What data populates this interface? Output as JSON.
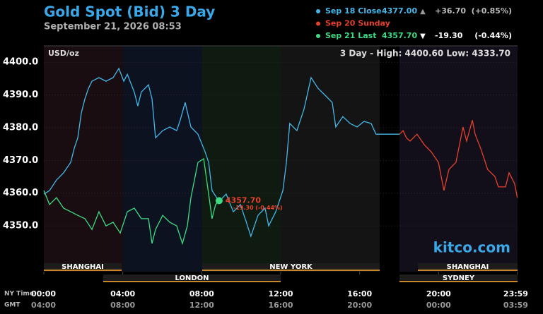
{
  "chart_data": {
    "type": "line",
    "title": "Gold Spot (Bid) 3 Day",
    "subtitle": "September 21, 2026 08:53",
    "unit_label": "USD/oz",
    "range_text": "3 Day - High: 4400.60  Low: 4333.70",
    "watermark": "kitco.com",
    "last_label": "4357.70",
    "last_change": "-19.30 (-0.44%)",
    "x_row_labels": [
      "NY Time",
      "GMT"
    ],
    "xlim": [
      0,
      24
    ],
    "xticks": [
      {
        "value": 0,
        "label": "00:00"
      },
      {
        "value": 4,
        "label": "04:00"
      },
      {
        "value": 8,
        "label": "08:00"
      },
      {
        "value": 12,
        "label": "12:00"
      },
      {
        "value": 16,
        "label": "16:00"
      },
      {
        "value": 20,
        "label": "20:00"
      },
      {
        "value": 23.98,
        "label": "23:59"
      }
    ],
    "xticks_gmt": [
      {
        "value": 0,
        "label": "04:00"
      },
      {
        "value": 4,
        "label": "08:00"
      },
      {
        "value": 8,
        "label": "12:00"
      },
      {
        "value": 12,
        "label": "16:00"
      },
      {
        "value": 16,
        "label": "20:00"
      },
      {
        "value": 20,
        "label": "00:00"
      },
      {
        "value": 23.98,
        "label": "03:59"
      }
    ],
    "ylim": [
      4336,
      4405
    ],
    "yticks": [
      {
        "value": 4350,
        "label": "4350.0"
      },
      {
        "value": 4360,
        "label": "4360.0"
      },
      {
        "value": 4370,
        "label": "4370.0"
      },
      {
        "value": 4380,
        "label": "4380.0"
      },
      {
        "value": 4390,
        "label": "4390.0"
      },
      {
        "value": 4400,
        "label": "4400.0"
      }
    ],
    "grid": true,
    "sessions": [
      "SHANGHAI",
      "LONDON",
      "NEW YORK",
      "SHANGHAI",
      "SYDNEY"
    ],
    "series": [
      {
        "name": "Sep 18 Close",
        "color": "#45b8ea",
        "legend_value": "4377.00",
        "legend_arrow": "▲",
        "legend_change": "+36.70",
        "legend_pct": "(+0.85%)",
        "x": [
          0,
          0.29,
          0.64,
          1.0,
          1.36,
          1.54,
          1.72,
          1.9,
          2.08,
          2.26,
          2.44,
          2.79,
          3.15,
          3.51,
          3.8,
          4.05,
          4.23,
          4.58,
          4.76,
          4.94,
          5.3,
          5.48,
          5.66,
          6.02,
          6.38,
          6.73,
          6.91,
          7.16,
          7.45,
          7.81,
          8.17,
          8.35,
          8.52,
          8.88,
          9.24,
          9.6,
          9.96,
          10.32,
          10.49,
          10.85,
          11.21,
          11.39,
          11.75,
          12.11,
          12.29,
          12.46,
          12.82,
          13.18,
          13.54,
          13.9,
          14.25,
          14.61,
          14.79,
          15.15,
          15.51,
          15.87,
          16.22,
          16.58,
          16.83,
          17.01,
          18.02
        ],
        "values": [
          4359.7,
          4360.8,
          4364.0,
          4366.2,
          4369.4,
          4373.7,
          4376.9,
          4384.5,
          4388.8,
          4392.0,
          4394.2,
          4395.3,
          4394.2,
          4395.3,
          4398.1,
          4394.2,
          4396.3,
          4390.9,
          4386.6,
          4390.9,
          4393.1,
          4388.8,
          4376.9,
          4379.1,
          4380.2,
          4379.1,
          4382.3,
          4387.7,
          4380.2,
          4378.0,
          4372.6,
          4369.4,
          4360.8,
          4357.5,
          4359.7,
          4354.3,
          4356.5,
          4350.0,
          4346.8,
          4353.2,
          4355.4,
          4350.0,
          4354.3,
          4360.8,
          4369.4,
          4381.3,
          4379.1,
          4385.6,
          4395.3,
          4392.0,
          4389.9,
          4387.7,
          4380.2,
          4383.4,
          4381.3,
          4380.2,
          4381.9,
          4381.3,
          4378.0,
          4378.0,
          4378.0
        ]
      },
      {
        "name": "Sep 20 Sunday",
        "color": "#e8412c",
        "x": [
          18.02,
          18.2,
          18.37,
          18.55,
          18.91,
          19.27,
          19.63,
          19.99,
          20.27,
          20.52,
          20.88,
          21.24,
          21.42,
          21.71,
          21.85,
          22.13,
          22.49,
          22.85,
          23.03,
          23.39,
          23.57,
          23.85,
          23.99
        ],
        "values": [
          4378.0,
          4379.1,
          4376.9,
          4375.9,
          4378.0,
          4374.8,
          4372.6,
          4369.4,
          4360.8,
          4367.2,
          4369.4,
          4380.2,
          4375.9,
          4382.3,
          4378.0,
          4373.7,
          4367.2,
          4365.1,
          4361.9,
          4361.9,
          4366.2,
          4362.9,
          4358.6
        ]
      },
      {
        "name": "Sep 21 Last",
        "color": "#3ddc84",
        "legend_value": "4357.70",
        "legend_arrow": "▼",
        "legend_change": "-19.30",
        "legend_pct": "(-0.44%)",
        "x": [
          0,
          0.29,
          0.64,
          1.0,
          1.36,
          1.72,
          2.08,
          2.44,
          2.79,
          3.15,
          3.51,
          3.87,
          4.23,
          4.58,
          4.94,
          5.3,
          5.48,
          5.66,
          6.02,
          6.38,
          6.73,
          7.02,
          7.27,
          7.45,
          7.81,
          8.1,
          8.35,
          8.52,
          8.7,
          8.88
        ],
        "values": [
          4360.8,
          4356.5,
          4358.6,
          4355.4,
          4354.3,
          4353.2,
          4352.2,
          4348.9,
          4354.3,
          4350.0,
          4351.1,
          4347.8,
          4354.3,
          4355.4,
          4352.2,
          4352.2,
          4344.6,
          4348.9,
          4353.2,
          4351.1,
          4350.0,
          4344.6,
          4350.0,
          4358.6,
          4369.4,
          4370.5,
          4359.7,
          4352.2,
          4356.5,
          4357.7
        ]
      }
    ]
  }
}
